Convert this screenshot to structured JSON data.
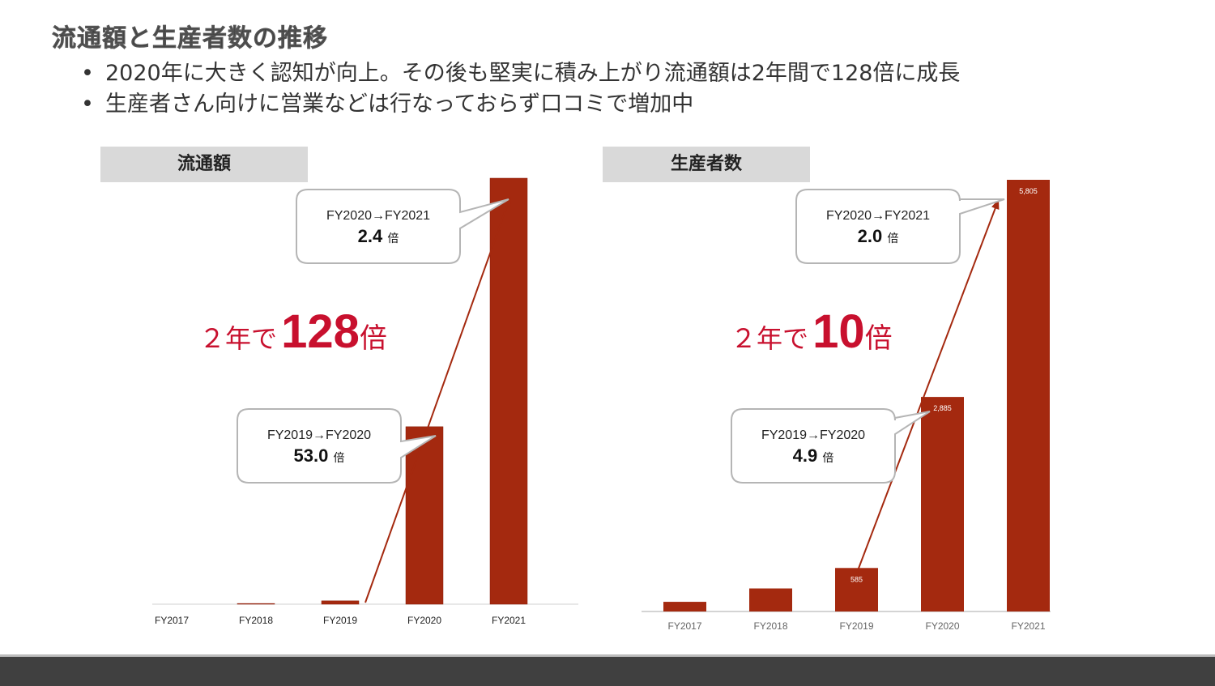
{
  "page": {
    "title": "流通額と生産者数の推移",
    "bullets": [
      "2020年に大きく認知が向上。その後も堅実に積み上がり流通額は2年間で128倍に成長",
      "生産者さん向けに営業などは行なっておらず口コミで増加中"
    ],
    "bullet_symbol": "•",
    "footer_color": "#404040"
  },
  "charts": [
    {
      "header": "流通額",
      "headline": {
        "pre": "２年で",
        "num": "128",
        "suf": "倍"
      },
      "callouts": [
        {
          "period": "FY2020→FY2021",
          "ratio": "2.4",
          "unit": "倍"
        },
        {
          "period": "FY2019→FY2020",
          "ratio": "53.0",
          "unit": "倍"
        }
      ]
    },
    {
      "header": "生産者数",
      "headline": {
        "pre": "２年で",
        "num": "10",
        "suf": "倍"
      },
      "callouts": [
        {
          "period": "FY2020→FY2021",
          "ratio": "2.0",
          "unit": "倍"
        },
        {
          "period": "FY2019→FY2020",
          "ratio": "4.9",
          "unit": "倍"
        }
      ]
    }
  ],
  "chart_data": [
    {
      "type": "bar",
      "title": "流通額",
      "categories": [
        "FY2017",
        "FY2018",
        "FY2019",
        "FY2020",
        "FY2021"
      ],
      "values": [
        0,
        0.4,
        1.9,
        100,
        240
      ],
      "ylim": [
        0,
        240
      ],
      "grid": false,
      "bar_color": "#a4290f"
    },
    {
      "type": "bar",
      "title": "生産者数",
      "categories": [
        "FY2017",
        "FY2018",
        "FY2019",
        "FY2020",
        "FY2021"
      ],
      "values": [
        130,
        310,
        585,
        2885,
        5805
      ],
      "data_labels": [
        "",
        "",
        "585",
        "2,885",
        "5,805"
      ],
      "ylim": [
        0,
        5805
      ],
      "grid": false,
      "bar_color": "#a4290f"
    }
  ]
}
